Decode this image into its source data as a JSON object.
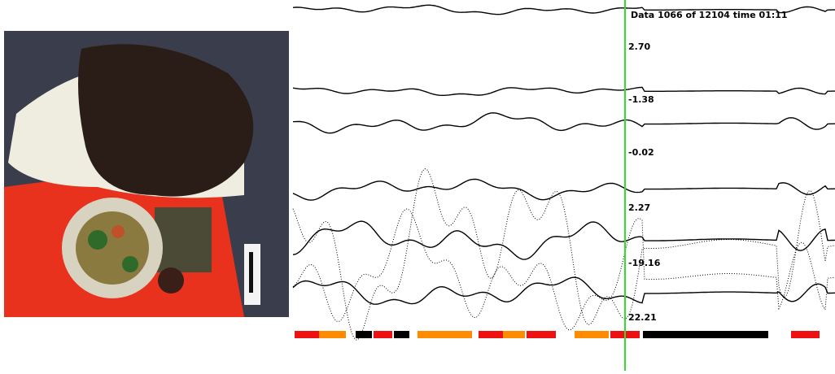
{
  "header": {
    "status": "Data 1066 of 12104  time 01:11"
  },
  "channels": [
    {
      "label": "2.70"
    },
    {
      "label": "-1.38"
    },
    {
      "label": "-0.02"
    },
    {
      "label": "2.27"
    },
    {
      "label": "-19.16"
    },
    {
      "label": "22.21"
    }
  ]
}
